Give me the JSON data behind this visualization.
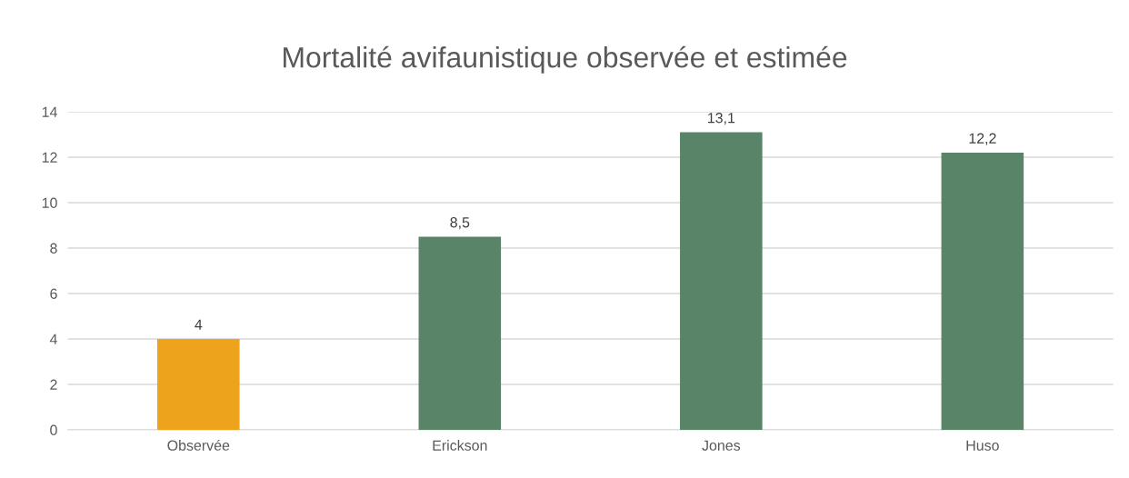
{
  "chart_data": {
    "type": "bar",
    "title": "Mortalité avifaunistique observée et estimée",
    "categories": [
      "Observée",
      "Erickson",
      "Jones",
      "Huso"
    ],
    "values": [
      4,
      8.5,
      13.1,
      12.2
    ],
    "colors": [
      "#eea31c",
      "#5a8468",
      "#5a8468",
      "#5a8468"
    ],
    "value_labels": [
      "4",
      "8,5",
      "13,1",
      "12,2"
    ],
    "ylim": [
      0,
      14
    ],
    "yticks": [
      0,
      2,
      4,
      6,
      8,
      10,
      12,
      14
    ],
    "grid": "y"
  }
}
